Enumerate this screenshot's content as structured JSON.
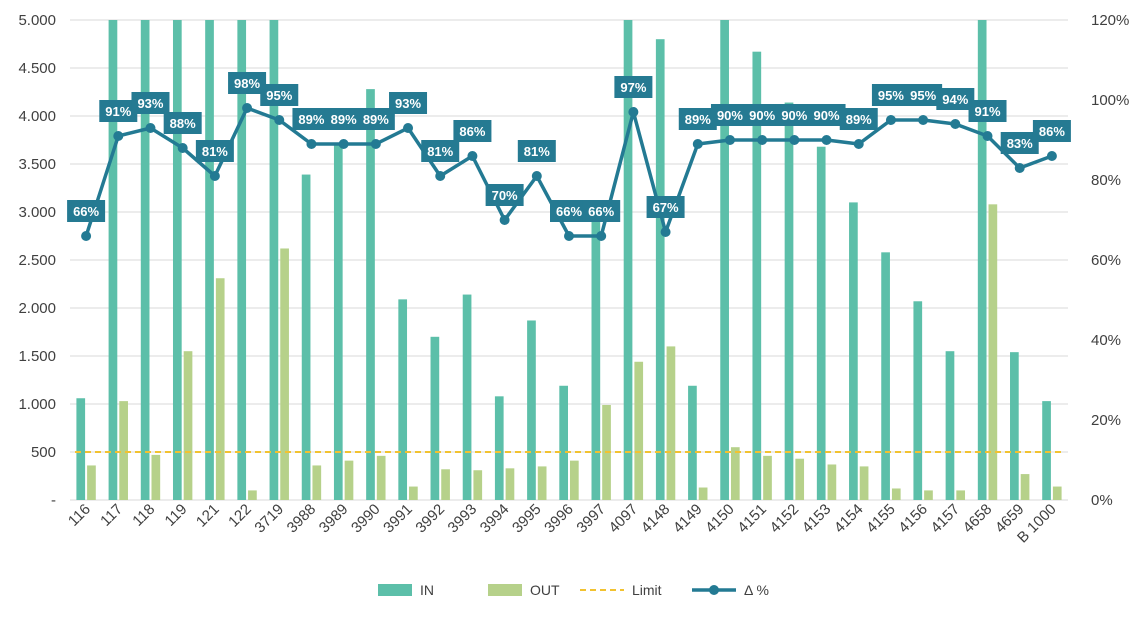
{
  "colors": {
    "in": "#5cbfa9",
    "out": "#b6d18a",
    "limit": "#f2c230",
    "delta": "#237a93",
    "label_bg": "#257a92",
    "grid": "#d9d9d9",
    "axis_text": "#404040"
  },
  "chart_data": {
    "type": "bar",
    "title": "",
    "xlabel": "",
    "ylabel": "",
    "ylim": [
      0,
      5000
    ],
    "y2lim": [
      0,
      1.2
    ],
    "grid": true,
    "legend_position": "bottom",
    "y_ticks": [
      "-",
      "500",
      "1.000",
      "1.500",
      "2.000",
      "2.500",
      "3.000",
      "3.500",
      "4.000",
      "4.500",
      "5.000"
    ],
    "y2_ticks": [
      "0%",
      "20%",
      "40%",
      "60%",
      "80%",
      "100%",
      "120%"
    ],
    "categories": [
      "116",
      "117",
      "118",
      "119",
      "121",
      "122",
      "3719",
      "3988",
      "3989",
      "3990",
      "3991",
      "3992",
      "3993",
      "3994",
      "3995",
      "3996",
      "3997",
      "4097",
      "4148",
      "4149",
      "4150",
      "4151",
      "4152",
      "4153",
      "4154",
      "4155",
      "4156",
      "4157",
      "4658",
      "4659",
      "B 1000"
    ],
    "series": [
      {
        "name": "IN",
        "type": "bar",
        "axis": "left",
        "values": [
          1060,
          5000,
          5000,
          5000,
          5000,
          5000,
          5000,
          3390,
          3700,
          4280,
          2090,
          1700,
          2140,
          1080,
          1870,
          1190,
          2950,
          5000,
          4800,
          1190,
          5000,
          4670,
          4140,
          3680,
          3100,
          2580,
          2070,
          1550,
          5000,
          1540,
          1030
        ]
      },
      {
        "name": "OUT",
        "type": "bar",
        "axis": "left",
        "values": [
          360,
          1030,
          470,
          1550,
          2310,
          100,
          2620,
          360,
          410,
          460,
          140,
          320,
          310,
          330,
          350,
          410,
          990,
          1440,
          1600,
          130,
          550,
          460,
          430,
          370,
          350,
          120,
          100,
          100,
          3080,
          270,
          140
        ]
      },
      {
        "name": "Limit",
        "type": "line",
        "axis": "left",
        "style": "dashed",
        "values": [
          500,
          500,
          500,
          500,
          500,
          500,
          500,
          500,
          500,
          500,
          500,
          500,
          500,
          500,
          500,
          500,
          500,
          500,
          500,
          500,
          500,
          500,
          500,
          500,
          500,
          500,
          500,
          500,
          500,
          500,
          500
        ]
      },
      {
        "name": "Δ %",
        "type": "line",
        "axis": "right",
        "values": [
          0.66,
          0.91,
          0.93,
          0.88,
          0.81,
          0.98,
          0.95,
          0.89,
          0.89,
          0.89,
          0.93,
          0.81,
          0.86,
          0.7,
          0.81,
          0.66,
          0.66,
          0.97,
          0.67,
          0.89,
          0.9,
          0.9,
          0.9,
          0.9,
          0.89,
          0.95,
          0.95,
          0.94,
          0.91,
          0.83,
          0.86
        ],
        "labels": [
          "66%",
          "91%",
          "93%",
          "88%",
          "81%",
          "98%",
          "95%",
          "89%",
          "89%",
          "89%",
          "93%",
          "81%",
          "86%",
          "70%",
          "81%",
          "66%",
          "66%",
          "97%",
          "67%",
          "89%",
          "90%",
          "90%",
          "90%",
          "90%",
          "89%",
          "95%",
          "95%",
          "94%",
          "91%",
          "83%",
          "86%"
        ]
      }
    ]
  }
}
